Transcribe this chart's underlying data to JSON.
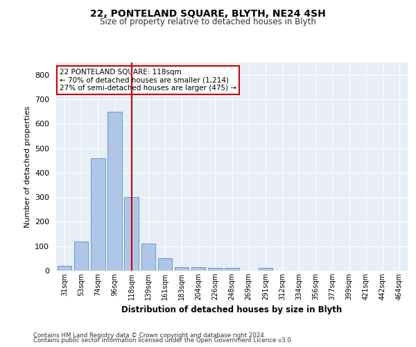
{
  "title1": "22, PONTELAND SQUARE, BLYTH, NE24 4SH",
  "title2": "Size of property relative to detached houses in Blyth",
  "xlabel": "Distribution of detached houses by size in Blyth",
  "ylabel": "Number of detached properties",
  "categories": [
    "31sqm",
    "53sqm",
    "74sqm",
    "96sqm",
    "118sqm",
    "139sqm",
    "161sqm",
    "183sqm",
    "204sqm",
    "226sqm",
    "248sqm",
    "269sqm",
    "291sqm",
    "312sqm",
    "334sqm",
    "356sqm",
    "377sqm",
    "399sqm",
    "421sqm",
    "442sqm",
    "464sqm"
  ],
  "values": [
    20,
    120,
    460,
    650,
    300,
    110,
    50,
    15,
    15,
    10,
    10,
    0,
    10,
    0,
    0,
    0,
    0,
    0,
    0,
    0,
    0
  ],
  "bar_color": "#aec6e8",
  "bar_edge_color": "#5a8fc0",
  "vline_x_index": 4,
  "vline_color": "#cc0000",
  "ylim": [
    0,
    850
  ],
  "yticks": [
    0,
    100,
    200,
    300,
    400,
    500,
    600,
    700,
    800
  ],
  "annotation_text": "22 PONTELAND SQUARE: 118sqm\n← 70% of detached houses are smaller (1,214)\n27% of semi-detached houses are larger (475) →",
  "annotation_box_color": "#ffffff",
  "annotation_box_edge": "#cc0000",
  "footer1": "Contains HM Land Registry data © Crown copyright and database right 2024.",
  "footer2": "Contains public sector information licensed under the Open Government Licence v3.0.",
  "background_color": "#e8eef5",
  "grid_color": "#ffffff"
}
